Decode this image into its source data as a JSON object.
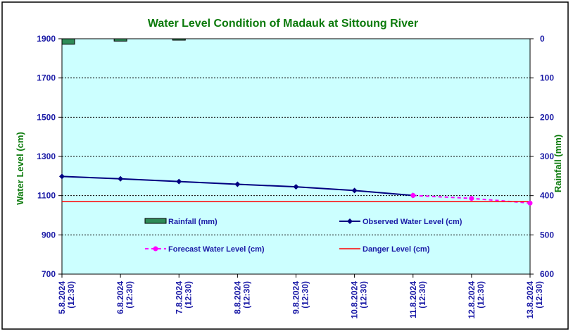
{
  "colors": {
    "plot_bg": "#ccffff",
    "title": "#0b7a0b",
    "axis_text": "#1a1aa6",
    "rain_bar": "#2e8b57",
    "observed": "#000080",
    "forecast": "#ff00ff",
    "danger": "#ff0000",
    "grid": "#000000"
  },
  "chart_data": {
    "type": "line",
    "title": "Water Level Condition of Madauk at Sittoung River",
    "xlabel": "",
    "ylabel": "Water Level (cm)",
    "y2label": "Rainfall (mm)",
    "ylim": [
      700,
      1900
    ],
    "y2lim": [
      0,
      600
    ],
    "y2_inverted": true,
    "yticks": [
      "1900",
      "1700",
      "1500",
      "1300",
      "1100",
      "900",
      "700"
    ],
    "y2ticks": [
      "0",
      "100",
      "200",
      "300",
      "400",
      "500",
      "600"
    ],
    "grid": true,
    "categories": [
      "5.8.2024\n(12:30)",
      "6.8.2024\n(12:30)",
      "7.8.2024\n(12:30)",
      "8.8.2024\n(12:30)",
      "9.8.2024\n(12:30)",
      "10.8.2024\n(12:30)",
      "11.8.2024\n(12:30)",
      "12.8.2024\n(12:30)",
      "13.8.2024\n(12:30)"
    ],
    "series": [
      {
        "name": "Rainfall (mm)",
        "type": "bar",
        "axis": "y2",
        "values": [
          14,
          6,
          2,
          0,
          0,
          0,
          0,
          null,
          null
        ]
      },
      {
        "name": "Observed Water Level (cm)",
        "type": "line",
        "axis": "y",
        "values": [
          1198,
          1186,
          1172,
          1158,
          1145,
          1126,
          1101,
          null,
          null
        ]
      },
      {
        "name": "Forecast Water Level (cm)",
        "type": "line",
        "style": "dashed",
        "axis": "y",
        "values": [
          null,
          null,
          null,
          null,
          null,
          null,
          1101,
          1086,
          1062
        ]
      },
      {
        "name": "Danger Level (cm)",
        "type": "line",
        "axis": "y",
        "values": [
          1070,
          1070,
          1070,
          1070,
          1070,
          1070,
          1070,
          1070,
          1070
        ]
      }
    ],
    "legend": [
      {
        "label": "Rainfall (mm)",
        "symbol": "bar"
      },
      {
        "label": "Observed Water Level (cm)",
        "symbol": "line-diamond"
      },
      {
        "label": "Forecast Water Level (cm)",
        "symbol": "dashed-circle"
      },
      {
        "label": "Danger Level (cm)",
        "symbol": "line"
      }
    ]
  }
}
